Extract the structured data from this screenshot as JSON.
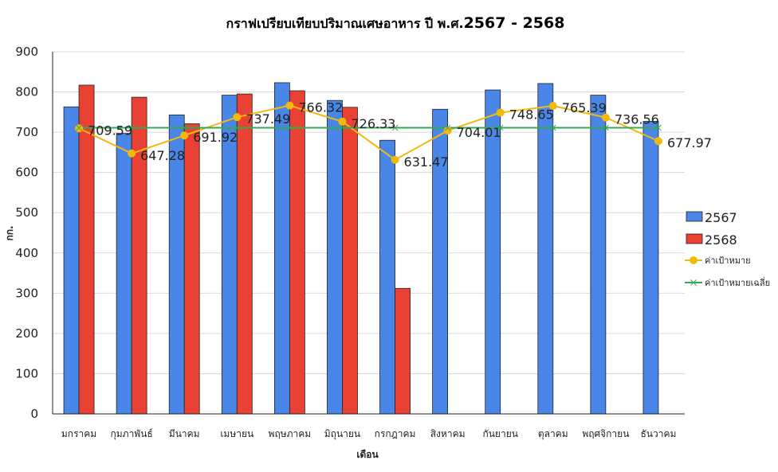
{
  "chart_data": {
    "type": "bar",
    "title_prefix": "กราฟเปรียบเทียบปริมาณเศษอาหาร    ปี พ.ศ.",
    "title_years": "2567 - 2568",
    "xlabel": "เดือน",
    "ylabel": "กก.",
    "ylim": [
      0,
      900
    ],
    "yticks": [
      0,
      100,
      200,
      300,
      400,
      500,
      600,
      700,
      800,
      900
    ],
    "grid": true,
    "legend_position": "right",
    "categories": [
      "มกราคม",
      "กุมภาพันธ์",
      "มีนาคม",
      "เมษายน",
      "พฤษภาคม",
      "มิถุนายน",
      "กรกฎาคม",
      "สิงหาคม",
      "กันยายน",
      "ตุลาคม",
      "พฤศจิกายน",
      "ธันวาคม"
    ],
    "series": [
      {
        "name": "2567",
        "kind": "bar",
        "color": "#4a86e8",
        "values": [
          763,
          697,
          743,
          792,
          823,
          779,
          680,
          757,
          805,
          821,
          792,
          727
        ]
      },
      {
        "name": "2568",
        "kind": "bar",
        "color": "#e94235",
        "values": [
          817,
          787,
          721,
          795,
          803,
          762,
          312,
          null,
          null,
          null,
          null,
          null
        ]
      },
      {
        "name": "ค่าเป้าหมาย",
        "kind": "line",
        "marker": "circle",
        "color": "#f2b90c",
        "values": [
          709.59,
          647.28,
          691.92,
          737.49,
          766.32,
          726.33,
          631.47,
          704.01,
          748.65,
          765.39,
          736.56,
          677.97
        ],
        "labels": [
          "709.59",
          "647.28",
          "691.92",
          "737.49",
          "766.32",
          "726.33",
          "631.47",
          "704.01",
          "748.65",
          "765.39",
          "736.56",
          "677.97"
        ]
      },
      {
        "name": "ค่าเป้าหมายเฉลี่ย",
        "kind": "line",
        "marker": "x",
        "color": "#34a853",
        "values": [
          711,
          711,
          711,
          711,
          711,
          711,
          711,
          711,
          711,
          711,
          711,
          711
        ]
      }
    ]
  }
}
